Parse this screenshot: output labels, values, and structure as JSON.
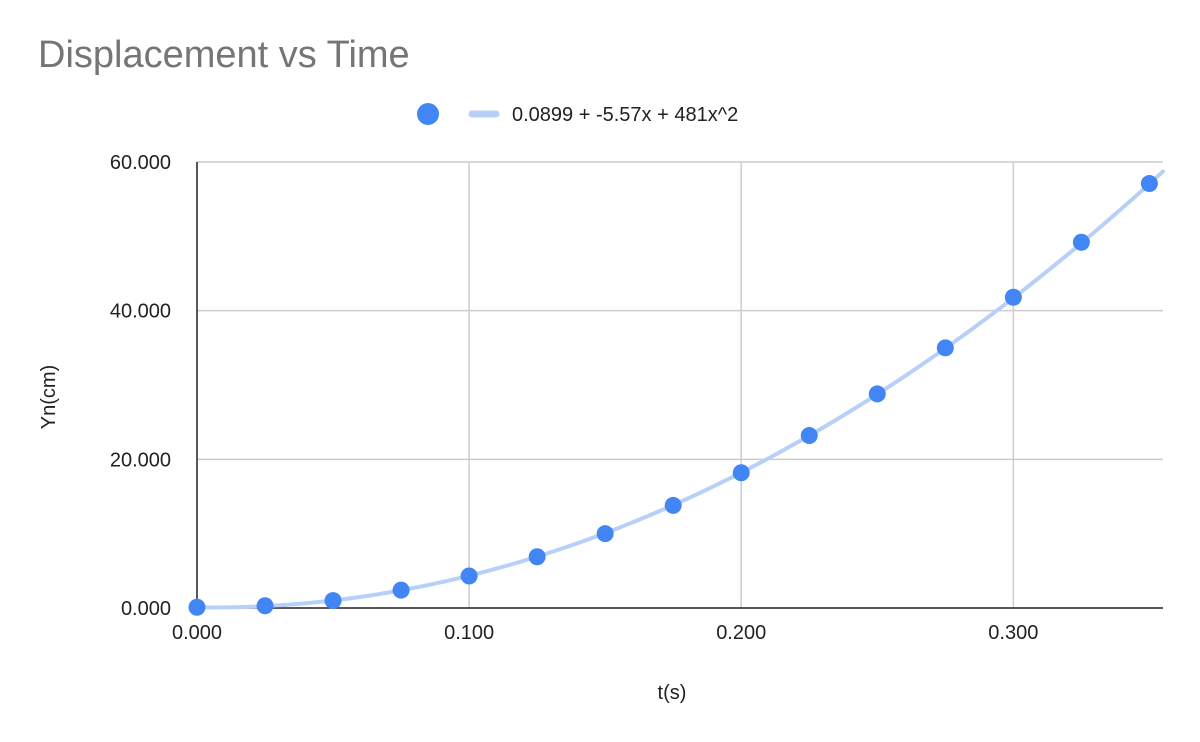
{
  "chart_data": {
    "type": "scatter",
    "title": "Displacement vs Time",
    "xlabel": "t(s)",
    "ylabel": "Yn(cm)",
    "xlim": [
      0,
      0.355
    ],
    "ylim": [
      0,
      60
    ],
    "x_ticks": [
      "0.000",
      "0.100",
      "0.200",
      "0.300"
    ],
    "x_tick_values": [
      0,
      0.1,
      0.2,
      0.3
    ],
    "y_ticks": [
      "0.000",
      "20.000",
      "40.000",
      "60.000"
    ],
    "y_tick_values": [
      0,
      20,
      40,
      60
    ],
    "grid": true,
    "legend_position": "top",
    "series": [
      {
        "kind": "points",
        "color": "#4285f4",
        "x": [
          0,
          0.025,
          0.05,
          0.075,
          0.1,
          0.125,
          0.15,
          0.175,
          0.2,
          0.225,
          0.25,
          0.275,
          0.3,
          0.325,
          0.35
        ],
        "y": [
          0.1,
          0.3,
          1.0,
          2.4,
          4.3,
          6.9,
          10.0,
          13.8,
          18.2,
          23.2,
          28.8,
          35.0,
          41.8,
          49.2,
          57.1
        ]
      },
      {
        "kind": "trendline",
        "name": "0.0899 + -5.57x + 481x^2",
        "color": "#b8d0f7",
        "coefficients": [
          0.0899,
          -5.57,
          481
        ]
      }
    ]
  }
}
